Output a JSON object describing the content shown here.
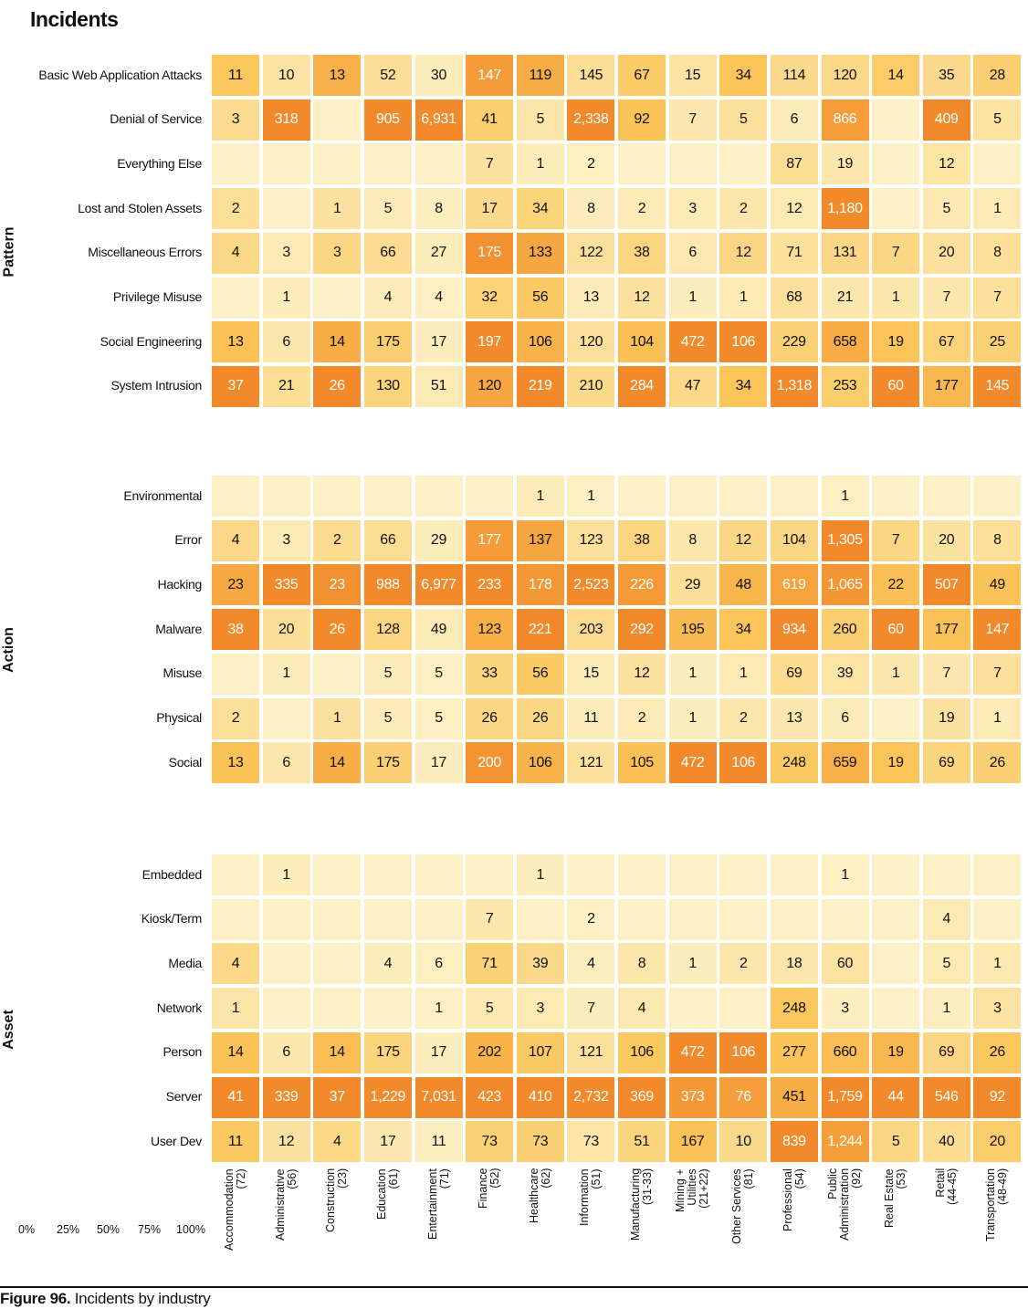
{
  "header": {
    "title": "Incidents"
  },
  "caption": {
    "bold": "Figure 96.",
    "text": " Incidents by industry"
  },
  "legend": {
    "ticks": [
      "0%",
      "25%",
      "50%",
      "75%",
      "100%"
    ]
  },
  "chart_data": {
    "type": "heatmap",
    "title": "Incidents",
    "columns": [
      [
        "Accommodation",
        "(72)"
      ],
      [
        "Administrative",
        "(56)"
      ],
      [
        "Construction",
        "(23)"
      ],
      [
        "Education",
        "(61)"
      ],
      [
        "Entertainment",
        "(71)"
      ],
      [
        "Finance",
        "(52)"
      ],
      [
        "Healthcare",
        "(62)"
      ],
      [
        "Information",
        "(51)"
      ],
      [
        "Manufacturing",
        "(31-33)"
      ],
      [
        "Mining +",
        "Utilities",
        "(21+22)"
      ],
      [
        "Other Services",
        "(81)"
      ],
      [
        "Professional",
        "(54)"
      ],
      [
        "Public",
        "Administration",
        "(92)"
      ],
      [
        "Real Estate",
        "(53)"
      ],
      [
        "Retail",
        "(44-45)"
      ],
      [
        "Transportation",
        "(48-49)"
      ]
    ],
    "panels": [
      {
        "name": "Pattern",
        "rows": [
          "Basic Web Application Attacks",
          "Denial of Service",
          "Everything Else",
          "Lost and Stolen Assets",
          "Miscellaneous Errors",
          "Privilege Misuse",
          "Social Engineering",
          "System Intrusion"
        ],
        "values": [
          [
            11,
            10,
            13,
            52,
            30,
            147,
            119,
            145,
            67,
            15,
            34,
            114,
            120,
            14,
            35,
            28
          ],
          [
            3,
            318,
            null,
            905,
            6931,
            41,
            5,
            2338,
            92,
            7,
            5,
            6,
            866,
            null,
            409,
            5
          ],
          [
            null,
            null,
            null,
            null,
            null,
            7,
            1,
            2,
            null,
            null,
            null,
            87,
            19,
            null,
            12,
            null
          ],
          [
            2,
            null,
            1,
            5,
            8,
            17,
            34,
            8,
            2,
            3,
            2,
            12,
            1180,
            null,
            5,
            1
          ],
          [
            4,
            3,
            3,
            66,
            27,
            175,
            133,
            122,
            38,
            6,
            12,
            71,
            131,
            7,
            20,
            8
          ],
          [
            null,
            1,
            null,
            4,
            4,
            32,
            56,
            13,
            12,
            1,
            1,
            68,
            21,
            1,
            7,
            7
          ],
          [
            13,
            6,
            14,
            175,
            17,
            197,
            106,
            120,
            104,
            472,
            106,
            229,
            658,
            19,
            67,
            25
          ],
          [
            37,
            21,
            26,
            130,
            51,
            120,
            219,
            210,
            284,
            47,
            34,
            1318,
            253,
            60,
            177,
            145
          ]
        ]
      },
      {
        "name": "Action",
        "rows": [
          "Environmental",
          "Error",
          "Hacking",
          "Malware",
          "Misuse",
          "Physical",
          "Social"
        ],
        "values": [
          [
            null,
            null,
            null,
            null,
            null,
            null,
            1,
            1,
            null,
            null,
            null,
            null,
            1,
            null,
            null,
            null
          ],
          [
            4,
            3,
            2,
            66,
            29,
            177,
            137,
            123,
            38,
            8,
            12,
            104,
            1305,
            7,
            20,
            8
          ],
          [
            23,
            335,
            23,
            988,
            6977,
            233,
            178,
            2523,
            226,
            29,
            48,
            619,
            1065,
            22,
            507,
            49
          ],
          [
            38,
            20,
            26,
            128,
            49,
            123,
            221,
            203,
            292,
            195,
            34,
            934,
            260,
            60,
            177,
            147
          ],
          [
            null,
            1,
            null,
            5,
            5,
            33,
            56,
            15,
            12,
            1,
            1,
            69,
            39,
            1,
            7,
            7
          ],
          [
            2,
            null,
            1,
            5,
            5,
            26,
            26,
            11,
            2,
            1,
            2,
            13,
            6,
            null,
            19,
            1
          ],
          [
            13,
            6,
            14,
            175,
            17,
            200,
            106,
            121,
            105,
            472,
            106,
            248,
            659,
            19,
            69,
            26
          ]
        ]
      },
      {
        "name": "Asset",
        "rows": [
          "Embedded",
          "Kiosk/Term",
          "Media",
          "Network",
          "Person",
          "Server",
          "User Dev"
        ],
        "values": [
          [
            null,
            1,
            null,
            null,
            null,
            null,
            1,
            null,
            null,
            null,
            null,
            null,
            1,
            null,
            null,
            null
          ],
          [
            null,
            null,
            null,
            null,
            null,
            7,
            null,
            2,
            null,
            null,
            null,
            null,
            null,
            null,
            4,
            null
          ],
          [
            4,
            null,
            null,
            4,
            6,
            71,
            39,
            4,
            8,
            1,
            2,
            18,
            60,
            null,
            5,
            1
          ],
          [
            1,
            null,
            null,
            null,
            1,
            5,
            3,
            7,
            4,
            null,
            null,
            248,
            3,
            null,
            1,
            3
          ],
          [
            14,
            6,
            14,
            175,
            17,
            202,
            107,
            121,
            106,
            472,
            106,
            277,
            660,
            19,
            69,
            26
          ],
          [
            41,
            339,
            37,
            1229,
            7031,
            423,
            410,
            2732,
            369,
            373,
            76,
            451,
            1759,
            44,
            546,
            92
          ],
          [
            11,
            12,
            4,
            17,
            11,
            73,
            73,
            73,
            51,
            167,
            10,
            839,
            1244,
            5,
            40,
            20
          ]
        ]
      }
    ],
    "color_scale": {
      "low": "#fcf1c6",
      "mid": "#fbc65a",
      "high": "#f07a1e"
    }
  }
}
